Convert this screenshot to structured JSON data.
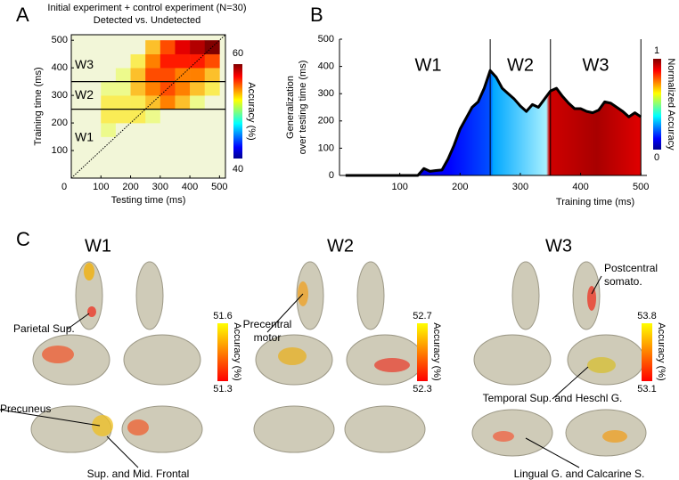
{
  "panel_labels": [
    "A",
    "B",
    "C"
  ],
  "chart_data": [
    {
      "type": "heatmap",
      "title_lines": [
        "Initial experiment + control experiment (N=30)",
        "Detected vs. Undetected"
      ],
      "xlabel": "Testing time (ms)",
      "ylabel": "Training time (ms)",
      "xlim": [
        0,
        520
      ],
      "ylim": [
        0,
        520
      ],
      "xticks": [
        0,
        100,
        200,
        300,
        400,
        500
      ],
      "yticks": [
        100,
        200,
        300,
        400,
        500
      ],
      "xbins": [
        0,
        50,
        100,
        150,
        200,
        250,
        300,
        350,
        400,
        450,
        500
      ],
      "ybins": [
        0,
        50,
        100,
        150,
        200,
        250,
        300,
        350,
        400,
        450,
        500
      ],
      "values": [
        [
          50,
          50,
          50,
          50,
          50,
          50,
          50,
          50,
          50,
          50
        ],
        [
          50,
          50,
          50,
          50,
          50,
          50,
          50,
          50,
          50,
          50
        ],
        [
          50,
          50,
          50,
          50,
          50,
          50,
          50,
          50,
          50,
          50
        ],
        [
          50,
          50,
          52,
          50,
          50,
          50,
          50,
          50,
          50,
          50
        ],
        [
          50,
          50,
          53,
          53,
          53,
          52,
          50,
          50,
          50,
          50
        ],
        [
          50,
          50,
          53,
          53,
          53,
          54,
          55,
          54,
          52,
          50
        ],
        [
          50,
          50,
          52,
          52,
          54,
          55,
          56,
          55,
          54,
          53
        ],
        [
          50,
          50,
          50,
          52,
          54,
          56,
          56,
          55,
          55,
          54
        ],
        [
          50,
          50,
          50,
          50,
          53,
          55,
          57,
          57,
          57,
          56
        ],
        [
          50,
          50,
          50,
          50,
          50,
          54,
          56,
          58,
          59,
          60
        ]
      ],
      "hlines": [
        250,
        350
      ],
      "region_labels": [
        "W1",
        "W2",
        "W3"
      ],
      "colorbar_label": "Accuracy (%)",
      "clim": [
        40,
        60
      ],
      "cticks": [
        40,
        60
      ],
      "colormap": "jet"
    },
    {
      "type": "area",
      "xlabel": "Training time (ms)",
      "ylabel_lines": [
        "Generalization",
        "over testing time (ms)"
      ],
      "x": [
        10,
        20,
        30,
        40,
        50,
        60,
        70,
        80,
        90,
        100,
        110,
        120,
        130,
        140,
        150,
        160,
        170,
        180,
        190,
        200,
        210,
        220,
        230,
        240,
        250,
        260,
        270,
        280,
        290,
        300,
        310,
        320,
        330,
        340,
        350,
        360,
        370,
        380,
        390,
        400,
        410,
        420,
        430,
        440,
        450,
        460,
        470,
        480,
        490,
        500
      ],
      "values": [
        0,
        0,
        0,
        0,
        0,
        0,
        0,
        0,
        0,
        0,
        0,
        0,
        0,
        25,
        15,
        18,
        20,
        60,
        110,
        170,
        210,
        250,
        270,
        320,
        385,
        360,
        320,
        300,
        280,
        255,
        235,
        260,
        250,
        280,
        310,
        320,
        290,
        265,
        245,
        245,
        235,
        230,
        240,
        270,
        265,
        250,
        235,
        215,
        230,
        215
      ],
      "xlim": [
        0,
        510
      ],
      "ylim": [
        0,
        500
      ],
      "xticks": [
        100,
        200,
        300,
        400,
        500
      ],
      "yticks": [
        0,
        100,
        200,
        300,
        400,
        500
      ],
      "vlines": [
        250,
        350,
        500
      ],
      "region_labels": [
        "W1",
        "W2",
        "W3"
      ],
      "colorbar_label": "Normalized Accuracy",
      "clim": [
        0,
        1
      ],
      "cticks": [
        0,
        1
      ],
      "line_color": "#000000"
    }
  ],
  "panel_c": {
    "windows": [
      {
        "title": "W1",
        "colorbar_max": 51.6,
        "colorbar_min": 51.3,
        "colorbar_label": "Accuracy (%)",
        "annotations": [
          [
            "Parietal Sup."
          ],
          [
            "Precuneus"
          ],
          [
            "Sup. and Mid. Frontal"
          ]
        ]
      },
      {
        "title": "W2",
        "colorbar_max": 52.7,
        "colorbar_min": 52.3,
        "colorbar_label": "Accuracy (%)",
        "annotations": [
          [
            "Precentral",
            "motor"
          ]
        ]
      },
      {
        "title": "W3",
        "colorbar_max": 53.8,
        "colorbar_min": 53.1,
        "colorbar_label": "Accuracy (%)",
        "annotations": [
          [
            "Postcentral",
            "somato."
          ],
          [
            "Temporal Sup. and Heschl G."
          ],
          [
            "Lingual G. and Calcarine S."
          ]
        ]
      }
    ]
  }
}
